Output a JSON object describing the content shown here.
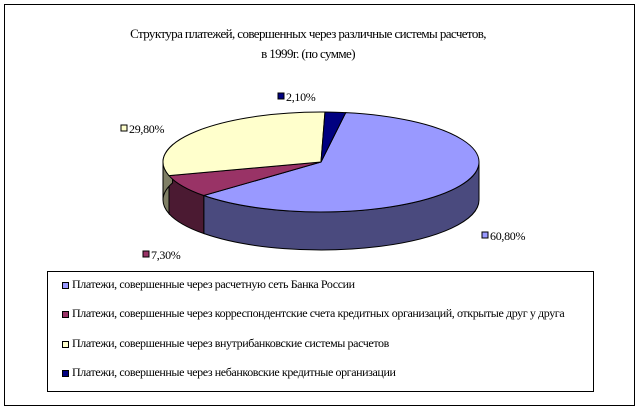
{
  "chart_data": {
    "type": "pie",
    "title": "Структура платежей, совершенных через различные системы расчетов,",
    "subtitle": "в 1999г. (по сумме)",
    "slices": [
      {
        "label": "60,80%",
        "value": 60.8,
        "color": "#9999FF",
        "side": "#4A4A7E",
        "legend": "Платежи, совершенные через расчетную сеть Банка России"
      },
      {
        "label": "7,30%",
        "value": 7.3,
        "color": "#993366",
        "side": "#4B1A32",
        "legend": "Платежи, совершенные через корреспондентские счета кредитных организаций, открытые друг у друга"
      },
      {
        "label": "29,80%",
        "value": 29.8,
        "color": "#FFFFCC",
        "side": "#7F7F65",
        "legend": "Платежи, совершенные через внутрибанковские системы расчетов"
      },
      {
        "label": "2,10%",
        "value": 2.1,
        "color": "#000080",
        "side": "#000040",
        "legend": "Платежи, совершенные через небанковские кредитные организации"
      }
    ]
  }
}
